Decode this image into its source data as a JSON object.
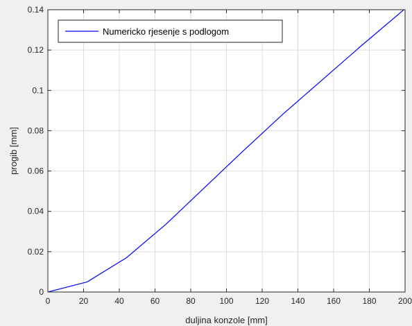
{
  "chart_data": {
    "type": "line",
    "title": "",
    "xlabel": "duljina konzole [mm]",
    "ylabel": "progib [mm]",
    "xlim": [
      0,
      200
    ],
    "ylim": [
      0,
      0.14
    ],
    "xticks": [
      0,
      20,
      40,
      60,
      80,
      100,
      120,
      140,
      160,
      180,
      200
    ],
    "yticks": [
      0,
      0.02,
      0.04,
      0.06,
      0.08,
      0.1,
      0.12,
      0.14
    ],
    "xtick_labels": [
      "0",
      "20",
      "40",
      "60",
      "80",
      "100",
      "120",
      "140",
      "160",
      "180",
      "200"
    ],
    "ytick_labels": [
      "0",
      "0.02",
      "0.04",
      "0.06",
      "0.08",
      "0.1",
      "0.12",
      "0.14"
    ],
    "grid": true,
    "legend_position": "top-left",
    "series": [
      {
        "name": "Numericko rjesenje s podlogom",
        "color": "#0000ff",
        "x": [
          0,
          22,
          44,
          66,
          88,
          110,
          132,
          154,
          176,
          200
        ],
        "y": [
          0,
          0.005,
          0.017,
          0.0335,
          0.052,
          0.0705,
          0.0885,
          0.1055,
          0.1225,
          0.1405
        ]
      }
    ]
  }
}
